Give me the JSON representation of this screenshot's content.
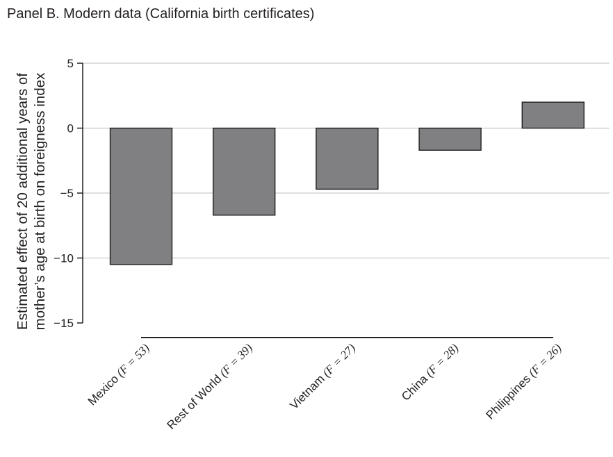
{
  "chart_data": {
    "type": "bar",
    "title": "Panel B. Modern data (California birth certificates)",
    "ylabel_lines": [
      "Estimated effect of 20 additional years of",
      "mother’s age at birth on foreigness index"
    ],
    "xlabel": "",
    "categories": [
      "Mexico (F = 53)",
      "Rest of World (F = 39)",
      "Vietnam (F = 27)",
      "China (F = 28)",
      "Philippines (F = 26)"
    ],
    "values": [
      -10.5,
      -6.7,
      -4.7,
      -1.7,
      2.0
    ],
    "ylim": [
      -15,
      5
    ],
    "yticks": [
      5,
      0,
      -5,
      -10,
      -15
    ],
    "ytick_labels": [
      "5",
      "0",
      "−5",
      "−10",
      "−15"
    ],
    "grid": true,
    "bar_color": "#808083",
    "edge_color": "#231f20",
    "grid_color": "#c9c9c9"
  }
}
